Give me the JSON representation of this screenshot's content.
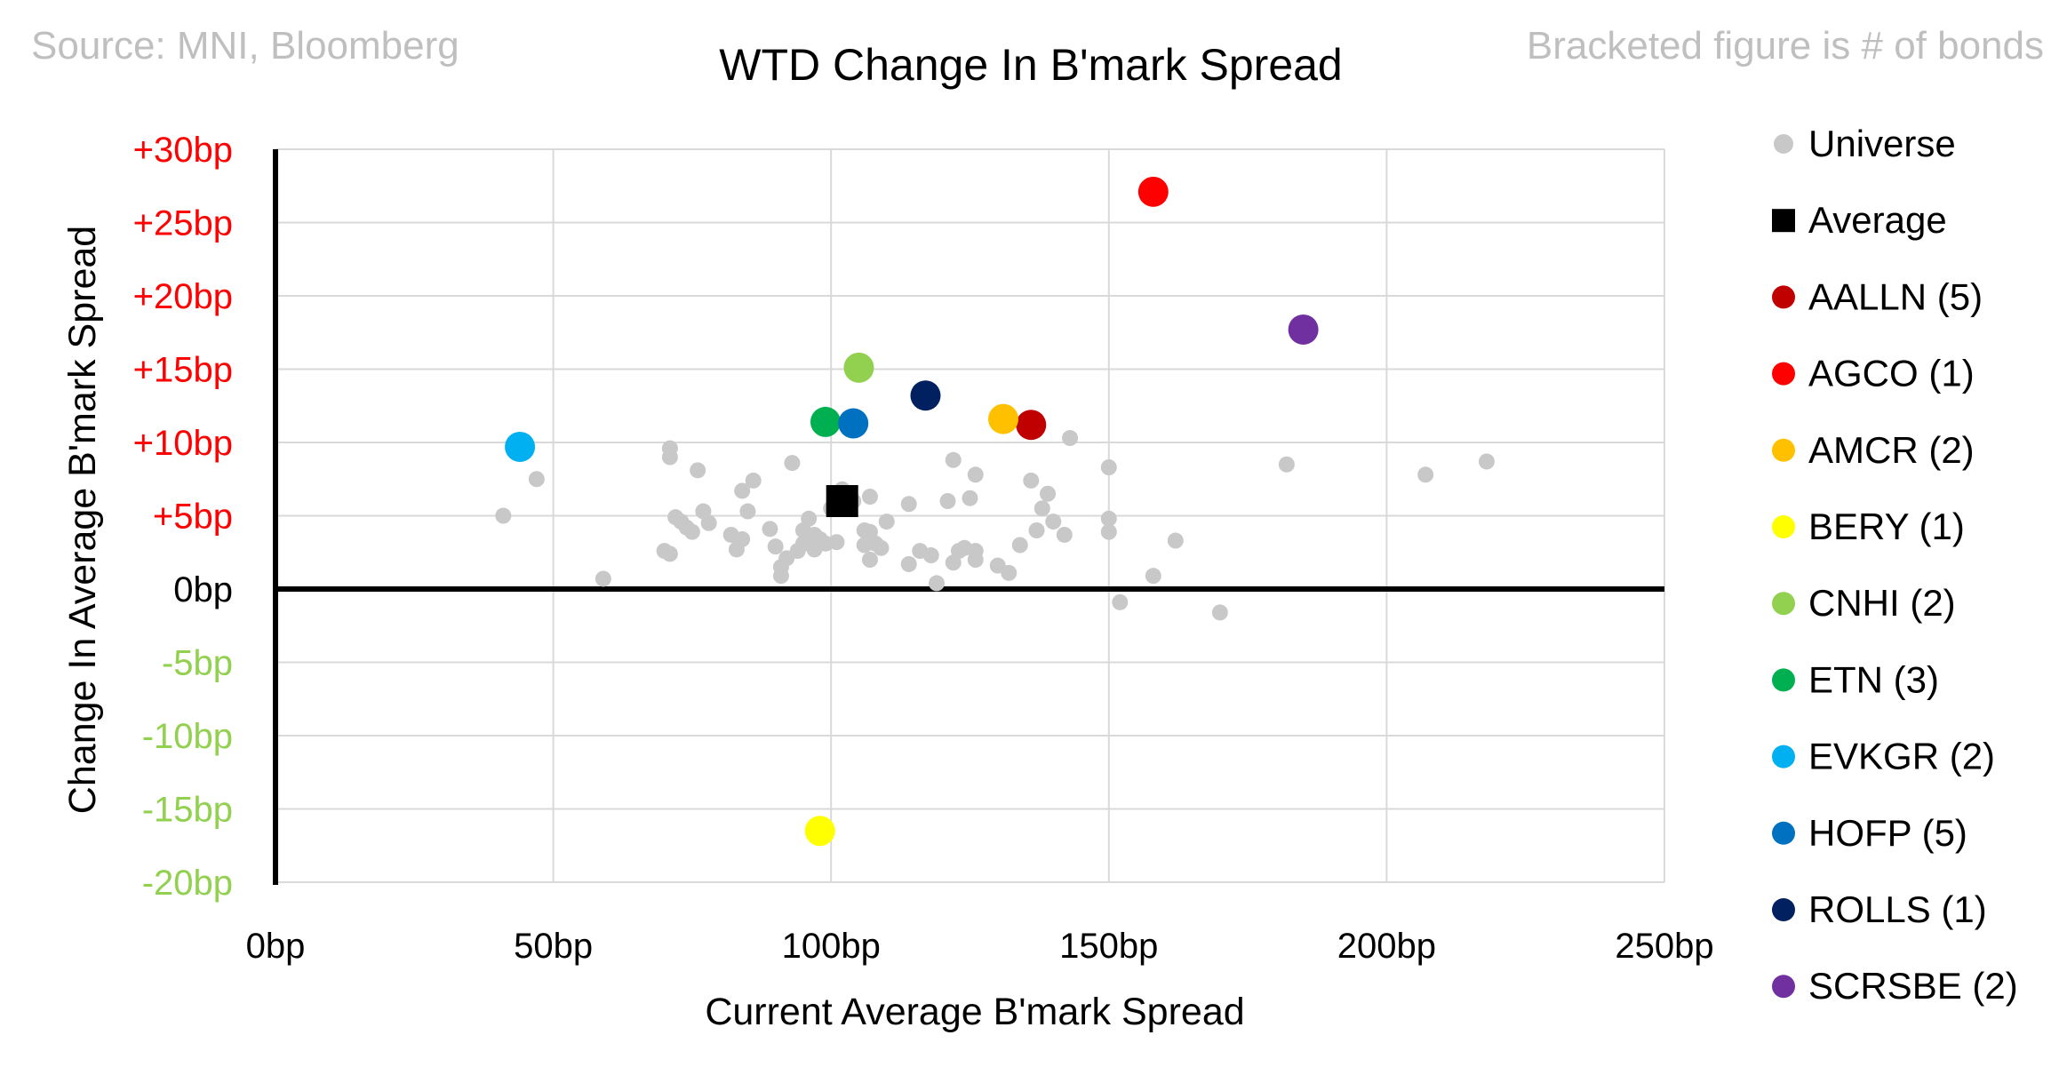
{
  "header": {
    "source": "Source: MNI, Bloomberg",
    "note": "Bracketed figure is # of bonds"
  },
  "chart_data": {
    "type": "scatter",
    "title": "WTD Change In B'mark Spread",
    "xlabel": "Current Average B'mark Spread",
    "ylabel": "Change In Average B'mark Spread",
    "xlim": [
      0,
      250
    ],
    "ylim": [
      -20,
      30
    ],
    "grid": true,
    "legend_position": "right",
    "x_ticks": [
      {
        "value": 0,
        "label": "0bp"
      },
      {
        "value": 50,
        "label": "50bp"
      },
      {
        "value": 100,
        "label": "100bp"
      },
      {
        "value": 150,
        "label": "150bp"
      },
      {
        "value": 200,
        "label": "200bp"
      },
      {
        "value": 250,
        "label": "250bp"
      }
    ],
    "y_ticks": [
      {
        "value": 30,
        "label": "+30bp",
        "color": "#ff0000"
      },
      {
        "value": 25,
        "label": "+25bp",
        "color": "#ff0000"
      },
      {
        "value": 20,
        "label": "+20bp",
        "color": "#ff0000"
      },
      {
        "value": 15,
        "label": "+15bp",
        "color": "#ff0000"
      },
      {
        "value": 10,
        "label": "+10bp",
        "color": "#ff0000"
      },
      {
        "value": 5,
        "label": "+5bp",
        "color": "#ff0000"
      },
      {
        "value": 0,
        "label": "0bp",
        "color": "#000000"
      },
      {
        "value": -5,
        "label": "-5bp",
        "color": "#92d050"
      },
      {
        "value": -10,
        "label": "-10bp",
        "color": "#92d050"
      },
      {
        "value": -15,
        "label": "-15bp",
        "color": "#92d050"
      },
      {
        "value": -20,
        "label": "-20bp",
        "color": "#92d050"
      }
    ],
    "series": [
      {
        "name": "Universe",
        "label": "Universe",
        "color": "#c8c8c8",
        "marker": "circle",
        "size": "small",
        "points": [
          [
            41,
            5.0
          ],
          [
            47,
            7.5
          ],
          [
            59,
            0.7
          ],
          [
            70,
            2.6
          ],
          [
            71,
            9.6
          ],
          [
            71,
            9.0
          ],
          [
            71,
            2.4
          ],
          [
            72,
            4.9
          ],
          [
            73,
            4.6
          ],
          [
            74,
            4.2
          ],
          [
            75,
            3.9
          ],
          [
            76,
            8.1
          ],
          [
            77,
            5.3
          ],
          [
            78,
            4.5
          ],
          [
            82,
            3.7
          ],
          [
            83,
            2.7
          ],
          [
            84,
            6.7
          ],
          [
            84,
            3.4
          ],
          [
            85,
            5.3
          ],
          [
            86,
            7.4
          ],
          [
            89,
            4.1
          ],
          [
            90,
            2.9
          ],
          [
            91,
            1.5
          ],
          [
            91,
            0.9
          ],
          [
            92,
            2.1
          ],
          [
            93,
            8.6
          ],
          [
            94,
            2.6
          ],
          [
            95,
            3.1
          ],
          [
            95,
            4.0
          ],
          [
            96,
            4.8
          ],
          [
            97,
            3.7
          ],
          [
            97,
            2.7
          ],
          [
            98,
            3.4
          ],
          [
            99,
            3.1
          ],
          [
            100,
            5.5
          ],
          [
            101,
            3.2
          ],
          [
            102,
            6.8
          ],
          [
            103,
            5.5
          ],
          [
            104,
            6.0
          ],
          [
            106,
            3.0
          ],
          [
            106,
            4.0
          ],
          [
            107,
            6.3
          ],
          [
            107,
            3.9
          ],
          [
            107,
            2.0
          ],
          [
            108,
            3.1
          ],
          [
            109,
            2.8
          ],
          [
            110,
            4.6
          ],
          [
            114,
            5.8
          ],
          [
            114,
            1.7
          ],
          [
            116,
            2.6
          ],
          [
            118,
            2.3
          ],
          [
            119,
            0.4
          ],
          [
            121,
            6.0
          ],
          [
            122,
            8.8
          ],
          [
            122,
            1.8
          ],
          [
            123,
            2.6
          ],
          [
            124,
            2.8
          ],
          [
            125,
            6.2
          ],
          [
            126,
            7.8
          ],
          [
            126,
            2.6
          ],
          [
            126,
            2.0
          ],
          [
            130,
            1.6
          ],
          [
            132,
            1.1
          ],
          [
            134,
            3.0
          ],
          [
            136,
            7.4
          ],
          [
            137,
            4.0
          ],
          [
            138,
            5.5
          ],
          [
            139,
            6.5
          ],
          [
            140,
            4.6
          ],
          [
            142,
            3.7
          ],
          [
            143,
            10.3
          ],
          [
            150,
            8.3
          ],
          [
            150,
            4.8
          ],
          [
            150,
            3.9
          ],
          [
            152,
            -0.9
          ],
          [
            158,
            0.9
          ],
          [
            162,
            3.3
          ],
          [
            170,
            -1.6
          ],
          [
            182,
            8.5
          ],
          [
            207,
            7.8
          ],
          [
            218,
            8.7
          ]
        ]
      },
      {
        "name": "Average",
        "label": "Average",
        "color": "#000000",
        "marker": "square",
        "size": "medium",
        "points": [
          [
            102,
            6.0
          ]
        ]
      },
      {
        "name": "AALLN",
        "label": "AALLN  (5)",
        "color": "#c00000",
        "marker": "circle",
        "size": "large",
        "points": [
          [
            136,
            11.2
          ]
        ]
      },
      {
        "name": "AGCO",
        "label": "AGCO  (1)",
        "color": "#ff0000",
        "marker": "circle",
        "size": "large",
        "points": [
          [
            158,
            27.1
          ]
        ]
      },
      {
        "name": "AMCR",
        "label": "AMCR  (2)",
        "color": "#ffc000",
        "marker": "circle",
        "size": "large",
        "points": [
          [
            131,
            11.6
          ]
        ]
      },
      {
        "name": "BERY",
        "label": "BERY  (1)",
        "color": "#ffff00",
        "marker": "circle",
        "size": "large",
        "points": [
          [
            98,
            -16.5
          ]
        ]
      },
      {
        "name": "CNHI",
        "label": "CNHI  (2)",
        "color": "#92d050",
        "marker": "circle",
        "size": "large",
        "points": [
          [
            105,
            15.1
          ]
        ]
      },
      {
        "name": "ETN",
        "label": "ETN  (3)",
        "color": "#00b050",
        "marker": "circle",
        "size": "large",
        "points": [
          [
            99,
            11.4
          ]
        ]
      },
      {
        "name": "EVKGR",
        "label": "EVKGR  (2)",
        "color": "#00b0f0",
        "marker": "circle",
        "size": "large",
        "points": [
          [
            44,
            9.7
          ]
        ]
      },
      {
        "name": "HOFP",
        "label": "HOFP  (5)",
        "color": "#0070c0",
        "marker": "circle",
        "size": "large",
        "points": [
          [
            104,
            11.3
          ]
        ]
      },
      {
        "name": "ROLLS",
        "label": "ROLLS  (1)",
        "color": "#002060",
        "marker": "circle",
        "size": "large",
        "points": [
          [
            117,
            13.2
          ]
        ]
      },
      {
        "name": "SCRSBE",
        "label": "SCRSBE  (2)",
        "color": "#7030a0",
        "marker": "circle",
        "size": "large",
        "points": [
          [
            185,
            17.7
          ]
        ]
      }
    ]
  }
}
